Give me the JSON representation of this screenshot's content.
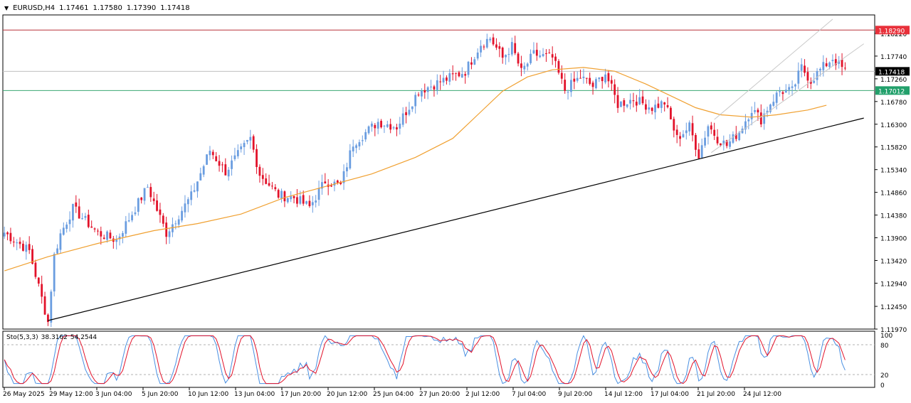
{
  "header": {
    "arrow": "▼",
    "symbol": "EURUSD,H4",
    "open": "1.17461",
    "high": "1.17580",
    "low": "1.17390",
    "close": "1.17418"
  },
  "stochastic_header": {
    "label": "Sto(5,3,3)",
    "main": "38.3162",
    "signal": "54.2544"
  },
  "chart_data": [
    {
      "type": "candlestick",
      "symbol": "EURUSD",
      "timeframe": "H4",
      "ylim": [
        1.1197,
        1.1861
      ],
      "y_ticks": [
        "1.18220",
        "1.17740",
        "1.17260",
        "1.16780",
        "1.16300",
        "1.15820",
        "1.15340",
        "1.14860",
        "1.14380",
        "1.13900",
        "1.13420",
        "1.12940",
        "1.12450",
        "1.11970"
      ],
      "x_ticks": [
        "26 May 2025",
        "29 May 12:00",
        "3 Jun 04:00",
        "5 Jun 20:00",
        "10 Jun 12:00",
        "13 Jun 04:00",
        "17 Jun 20:00",
        "20 Jun 12:00",
        "25 Jun 04:00",
        "27 Jun 20:00",
        "2 Jul 12:00",
        "7 Jul 04:00",
        "9 Jul 20:00",
        "14 Jul 12:00",
        "17 Jul 04:00",
        "21 Jul 20:00",
        "24 Jul 12:00"
      ],
      "price_labels": [
        {
          "text": "1.18290",
          "value": 1.1829,
          "color": "#e8303a",
          "line": "#b8323a"
        },
        {
          "text": "1.17418",
          "value": 1.17418,
          "color": "#000000",
          "line": "#c0c0c0"
        },
        {
          "text": "1.17012",
          "value": 1.17012,
          "color": "#22a06b",
          "line": "#3aa872"
        }
      ],
      "colors": {
        "bull": "#6a9de0",
        "bear": "#e2122a",
        "ma": "#f0a030",
        "trendline": "#000000",
        "channel": "#c8c8c8"
      },
      "key_prices": [
        {
          "index": 0,
          "price": 1.1401
        },
        {
          "index": 8,
          "price": 1.1362
        },
        {
          "index": 14,
          "price": 1.1212
        },
        {
          "index": 16,
          "price": 1.1352
        },
        {
          "index": 18,
          "price": 1.1398
        },
        {
          "index": 22,
          "price": 1.1452
        },
        {
          "index": 30,
          "price": 1.14
        },
        {
          "index": 36,
          "price": 1.1385
        },
        {
          "index": 46,
          "price": 1.1498
        },
        {
          "index": 52,
          "price": 1.14
        },
        {
          "index": 60,
          "price": 1.1478
        },
        {
          "index": 66,
          "price": 1.1575
        },
        {
          "index": 71,
          "price": 1.153
        },
        {
          "index": 79,
          "price": 1.16
        },
        {
          "index": 82,
          "price": 1.1525
        },
        {
          "index": 88,
          "price": 1.148
        },
        {
          "index": 93,
          "price": 1.1475
        },
        {
          "index": 98,
          "price": 1.1455
        },
        {
          "index": 103,
          "price": 1.151
        },
        {
          "index": 108,
          "price": 1.15
        },
        {
          "index": 112,
          "price": 1.159
        },
        {
          "index": 120,
          "price": 1.1635
        },
        {
          "index": 126,
          "price": 1.1625
        },
        {
          "index": 133,
          "price": 1.17
        },
        {
          "index": 140,
          "price": 1.172
        },
        {
          "index": 148,
          "price": 1.1742
        },
        {
          "index": 153,
          "price": 1.18
        },
        {
          "index": 156,
          "price": 1.1812
        },
        {
          "index": 160,
          "price": 1.177
        },
        {
          "index": 163,
          "price": 1.1795
        },
        {
          "index": 166,
          "price": 1.174
        },
        {
          "index": 170,
          "price": 1.1778
        },
        {
          "index": 176,
          "price": 1.177
        },
        {
          "index": 180,
          "price": 1.1702
        },
        {
          "index": 185,
          "price": 1.173
        },
        {
          "index": 189,
          "price": 1.171
        },
        {
          "index": 193,
          "price": 1.1738
        },
        {
          "index": 197,
          "price": 1.1672
        },
        {
          "index": 202,
          "price": 1.1683
        },
        {
          "index": 208,
          "price": 1.1665
        },
        {
          "index": 212,
          "price": 1.1676
        },
        {
          "index": 216,
          "price": 1.16
        },
        {
          "index": 220,
          "price": 1.1625
        },
        {
          "index": 223,
          "price": 1.1565
        },
        {
          "index": 226,
          "price": 1.1628
        },
        {
          "index": 229,
          "price": 1.16
        },
        {
          "index": 232,
          "price": 1.1585
        },
        {
          "index": 236,
          "price": 1.1615
        },
        {
          "index": 240,
          "price": 1.1662
        },
        {
          "index": 243,
          "price": 1.164
        },
        {
          "index": 246,
          "price": 1.1675
        },
        {
          "index": 249,
          "price": 1.17
        },
        {
          "index": 253,
          "price": 1.17
        },
        {
          "index": 256,
          "price": 1.175
        },
        {
          "index": 259,
          "price": 1.1722
        },
        {
          "index": 262,
          "price": 1.1745
        },
        {
          "index": 266,
          "price": 1.177
        },
        {
          "index": 268,
          "price": 1.1755
        },
        {
          "index": 270,
          "price": 1.1742
        }
      ],
      "moving_average": [
        [
          0,
          1.132
        ],
        [
          14,
          1.135
        ],
        [
          30,
          1.1378
        ],
        [
          48,
          1.1405
        ],
        [
          62,
          1.142
        ],
        [
          76,
          1.144
        ],
        [
          90,
          1.1475
        ],
        [
          104,
          1.15
        ],
        [
          118,
          1.1525
        ],
        [
          132,
          1.156
        ],
        [
          144,
          1.16
        ],
        [
          152,
          1.165
        ],
        [
          160,
          1.17
        ],
        [
          168,
          1.173
        ],
        [
          176,
          1.1745
        ],
        [
          186,
          1.175
        ],
        [
          196,
          1.1742
        ],
        [
          206,
          1.1715
        ],
        [
          214,
          1.169
        ],
        [
          222,
          1.1665
        ],
        [
          230,
          1.165
        ],
        [
          240,
          1.1645
        ],
        [
          248,
          1.165
        ],
        [
          258,
          1.166
        ],
        [
          264,
          1.167
        ]
      ],
      "trendline": [
        [
          14,
          1.1215
        ],
        [
          276,
          1.1643
        ]
      ],
      "channel_upper": [
        [
          228,
          1.164
        ],
        [
          266,
          1.1852
        ]
      ],
      "channel_lower": [
        [
          227,
          1.157
        ],
        [
          276,
          1.18
        ]
      ]
    },
    {
      "type": "line",
      "title": "Sto(5,3,3)",
      "ylim": [
        0,
        100
      ],
      "y_ticks": [
        "100",
        "80",
        "20",
        "0"
      ],
      "levels": [
        80,
        20
      ],
      "series": [
        {
          "name": "main",
          "color": "#4a90e2"
        },
        {
          "name": "signal",
          "color": "#e2122a"
        }
      ],
      "main_values": [
        38.3162
      ],
      "signal_values": [
        54.2544
      ]
    }
  ]
}
